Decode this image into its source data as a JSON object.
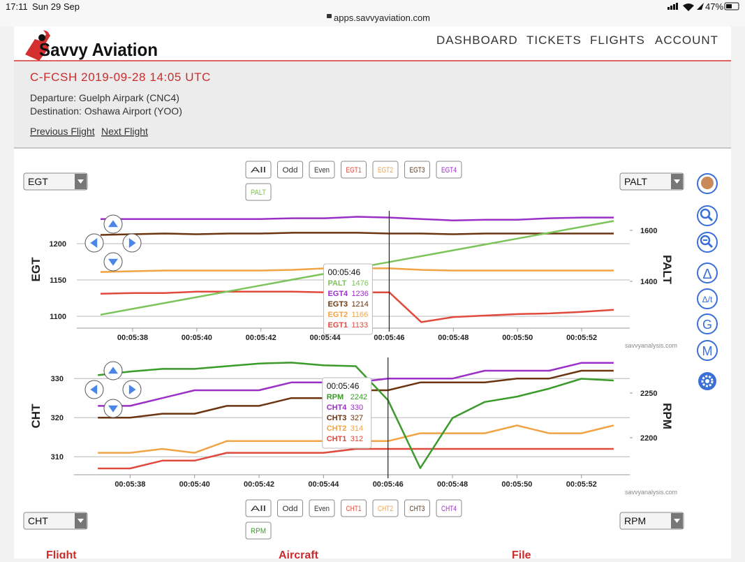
{
  "status_bar": {
    "time": "17:11",
    "date": "Sun 29 Sep",
    "url": "apps.savvyaviation.com",
    "battery": "47%"
  },
  "header": {
    "logo": "Savvy Aviation",
    "nav": [
      "DASHBOARD",
      "TICKETS",
      "FLIGHTS",
      "ACCOUNT"
    ]
  },
  "flight": {
    "title": "C-FCSH 2019-09-28 14:05 UTC",
    "departure": "Departure: Guelph Airpark (CNC4)",
    "destination": "Destination: Oshawa Airport (YOO)",
    "links": [
      "Previous Flight",
      "Next Flight"
    ]
  },
  "filter_buttons": [
    "All",
    "Odd",
    "Even"
  ],
  "tools": [
    "Δ",
    "Δ/t",
    "G",
    "M"
  ],
  "watermark": "savvyanalysis.com",
  "footer_tabs": [
    "Flight",
    "Aircraft",
    "File"
  ],
  "chart_data": [
    {
      "type": "line",
      "ylabel": "EGT",
      "y2label": "PALT",
      "x": [
        337,
        338,
        339,
        340,
        341,
        342,
        343,
        344,
        345,
        346,
        347,
        348,
        349,
        350,
        351,
        352,
        353
      ],
      "xlim": [
        336.26,
        353.5
      ],
      "xticks": [
        {
          "value": 338,
          "label": "00:05:38"
        },
        {
          "value": 340,
          "label": "00:05:40"
        },
        {
          "value": 342,
          "label": "00:05:42"
        },
        {
          "value": 344,
          "label": "00:05:44"
        },
        {
          "value": 346,
          "label": "00:05:46"
        },
        {
          "value": 348,
          "label": "00:05:48"
        },
        {
          "value": 350,
          "label": "00:05:50"
        },
        {
          "value": 352,
          "label": "00:05:52"
        }
      ],
      "ylim": [
        1083.7,
        1245.2
      ],
      "yticks": [
        1100,
        1150,
        1200
      ],
      "y2lim": [
        1216.4,
        1676.7
      ],
      "y2ticks": [
        1400,
        1600
      ],
      "grid": true,
      "cursor": 346,
      "series": [
        {
          "name": "EGT1",
          "color": "#e04a3c",
          "values": [
            1131,
            1132,
            1132,
            1134,
            1134,
            1134,
            1134,
            1133,
            1133,
            1133,
            1092,
            1099,
            1101,
            1103,
            1104,
            1106,
            1109
          ]
        },
        {
          "name": "EGT2",
          "color": "#f0a445",
          "values": [
            1161,
            1162,
            1163,
            1163,
            1163,
            1163,
            1164,
            1166,
            1166,
            1166,
            1164,
            1163,
            1163,
            1163,
            1163,
            1163,
            1163
          ]
        },
        {
          "name": "EGT3",
          "color": "#6b3510",
          "values": [
            1212,
            1213,
            1214,
            1213,
            1214,
            1214,
            1215,
            1215,
            1215,
            1214,
            1214,
            1213,
            1214,
            1214,
            1214,
            1214,
            1214
          ]
        },
        {
          "name": "EGT4",
          "color": "#9b30c8",
          "values": [
            1234,
            1234,
            1234,
            1234,
            1234,
            1234,
            1235,
            1235,
            1237,
            1236,
            1234,
            1232,
            1233,
            1233,
            1235,
            1236,
            1236
          ]
        },
        {
          "name": "PALT",
          "color": "#7cc45a",
          "axis": "y2",
          "values": [
            1269,
            1292,
            1315,
            1338,
            1361,
            1384,
            1407,
            1430,
            1453,
            1476,
            1499,
            1522,
            1545,
            1568,
            1591,
            1614,
            1637
          ]
        }
      ]
    },
    {
      "type": "line",
      "ylabel": "CHT",
      "y2label": "RPM",
      "x": [
        337,
        338,
        339,
        340,
        341,
        342,
        343,
        344,
        345,
        346,
        347,
        348,
        349,
        350,
        351,
        352,
        353
      ],
      "xlim": [
        336.26,
        353.5
      ],
      "xticks": [
        {
          "value": 338,
          "label": "00:05:38"
        },
        {
          "value": 340,
          "label": "00:05:40"
        },
        {
          "value": 342,
          "label": "00:05:42"
        },
        {
          "value": 344,
          "label": "00:05:44"
        },
        {
          "value": 346,
          "label": "00:05:46"
        },
        {
          "value": 348,
          "label": "00:05:48"
        },
        {
          "value": 350,
          "label": "00:05:50"
        },
        {
          "value": 352,
          "label": "00:05:52"
        }
      ],
      "ylim": [
        305.4,
        335.4
      ],
      "yticks": [
        310,
        320,
        330
      ],
      "y2lim": [
        2158.6,
        2289.8
      ],
      "y2ticks": [
        2200,
        2250
      ],
      "grid": true,
      "cursor": 346,
      "series": [
        {
          "name": "CHT1",
          "color": "#e04a3c",
          "values": [
            307,
            307,
            309,
            309,
            311,
            311,
            311,
            311,
            312,
            312,
            312,
            312,
            312,
            312,
            312,
            312,
            312
          ]
        },
        {
          "name": "CHT2",
          "color": "#f0a445",
          "values": [
            311,
            311,
            312,
            311,
            314,
            314,
            314,
            314,
            314,
            314,
            316,
            316,
            316,
            318,
            316,
            316,
            318
          ]
        },
        {
          "name": "CHT3",
          "color": "#6b3510",
          "values": [
            320,
            320,
            321,
            321,
            323,
            323,
            325,
            325,
            327,
            327,
            329,
            329,
            329,
            330,
            330,
            332,
            332
          ]
        },
        {
          "name": "CHT4",
          "color": "#9b30c8",
          "values": [
            323,
            323,
            325,
            327,
            327,
            327,
            329,
            329,
            329,
            330,
            330,
            330,
            332,
            332,
            332,
            334,
            334
          ]
        },
        {
          "name": "RPM",
          "color": "#3a9a2a",
          "axis": "y2",
          "values": [
            2270,
            2274,
            2277,
            2277,
            2280,
            2283,
            2284,
            2281,
            2280,
            2242,
            2166,
            2222,
            2240,
            2246,
            2255,
            2266,
            2264
          ]
        }
      ]
    }
  ]
}
